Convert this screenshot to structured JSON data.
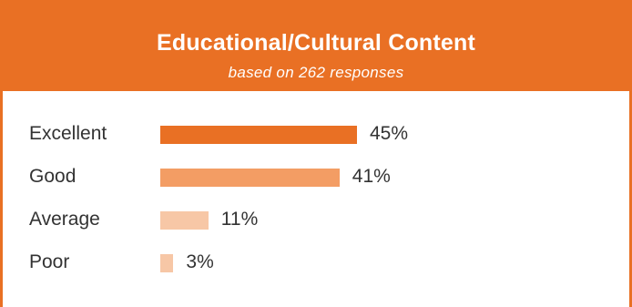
{
  "header": {
    "title": "Educational/Cultural Content",
    "subtitle": "based on 262 responses"
  },
  "colors": {
    "accent": "#e97024",
    "bars": [
      "#e97024",
      "#f39d64",
      "#f7c7a6",
      "#f7c7a6"
    ]
  },
  "chart_data": {
    "type": "bar",
    "orientation": "horizontal",
    "title": "Educational/Cultural Content",
    "subtitle": "based on 262 responses",
    "categories": [
      "Excellent",
      "Good",
      "Average",
      "Poor"
    ],
    "values": [
      45,
      41,
      11,
      3
    ],
    "value_labels": [
      "45%",
      "41%",
      "11%",
      "3%"
    ],
    "unit": "%",
    "xlim": [
      0,
      100
    ],
    "grid": false,
    "legend": "none"
  }
}
